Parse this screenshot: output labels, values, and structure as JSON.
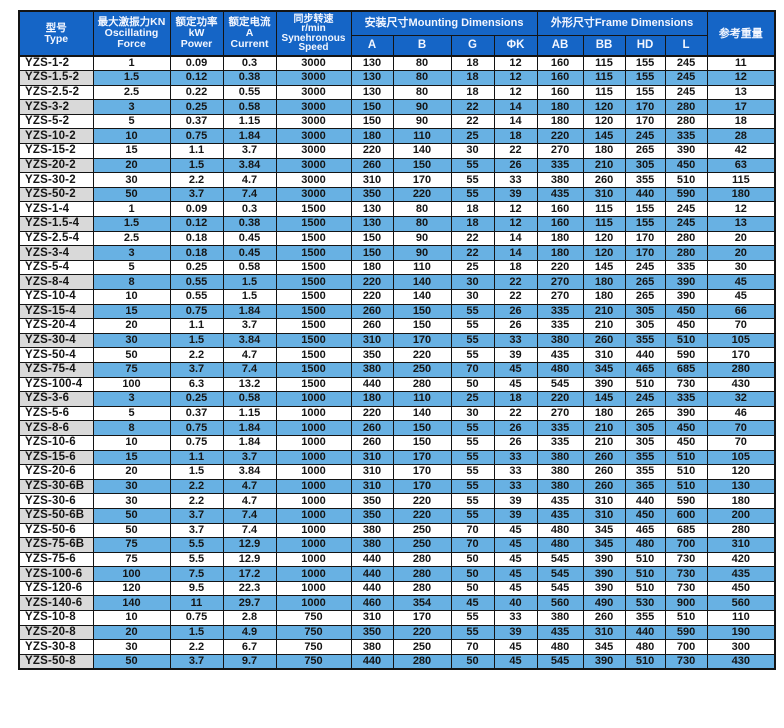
{
  "colors": {
    "header_blue": "#1565c6",
    "row_blue": "#68b1e3",
    "type_gray": "#d9d9d9",
    "border_dark": "#141414"
  },
  "table": {
    "header": {
      "type_lines": [
        "型号",
        "Type"
      ],
      "force_lines": [
        "最大激振力KN",
        "Oscillating",
        "Force"
      ],
      "power_lines": [
        "额定功率",
        "kW",
        "Power"
      ],
      "current_lines": [
        "额定电流",
        "A",
        "Current"
      ],
      "speed_lines": [
        "同步转速",
        "r/min",
        "Synehronous",
        "Speed"
      ],
      "mounting": "安装尺寸Mounting Dimensions",
      "frame": "外形尺寸Frame Dimensions",
      "weight": "参考重量",
      "mounting_cols": [
        "A",
        "B",
        "G",
        "ΦK"
      ],
      "frame_cols": [
        "AB",
        "BB",
        "HD",
        "L"
      ]
    },
    "rows": [
      {
        "type": "YZS-1-2",
        "values": [
          "1",
          "0.09",
          "0.3",
          "3000",
          "130",
          "80",
          "18",
          "12",
          "160",
          "115",
          "155",
          "245",
          "11"
        ]
      },
      {
        "type": "YZS-1.5-2",
        "values": [
          "1.5",
          "0.12",
          "0.38",
          "3000",
          "130",
          "80",
          "18",
          "12",
          "160",
          "115",
          "155",
          "245",
          "12"
        ]
      },
      {
        "type": "YZS-2.5-2",
        "values": [
          "2.5",
          "0.22",
          "0.55",
          "3000",
          "130",
          "80",
          "18",
          "12",
          "160",
          "115",
          "155",
          "245",
          "13"
        ]
      },
      {
        "type": "YZS-3-2",
        "values": [
          "3",
          "0.25",
          "0.58",
          "3000",
          "150",
          "90",
          "22",
          "14",
          "180",
          "120",
          "170",
          "280",
          "17"
        ]
      },
      {
        "type": "YZS-5-2",
        "values": [
          "5",
          "0.37",
          "1.15",
          "3000",
          "150",
          "90",
          "22",
          "14",
          "180",
          "120",
          "170",
          "280",
          "18"
        ]
      },
      {
        "type": "YZS-10-2",
        "values": [
          "10",
          "0.75",
          "1.84",
          "3000",
          "180",
          "110",
          "25",
          "18",
          "220",
          "145",
          "245",
          "335",
          "28"
        ]
      },
      {
        "type": "YZS-15-2",
        "values": [
          "15",
          "1.1",
          "3.7",
          "3000",
          "220",
          "140",
          "30",
          "22",
          "270",
          "180",
          "265",
          "390",
          "42"
        ]
      },
      {
        "type": "YZS-20-2",
        "values": [
          "20",
          "1.5",
          "3.84",
          "3000",
          "260",
          "150",
          "55",
          "26",
          "335",
          "210",
          "305",
          "450",
          "63"
        ]
      },
      {
        "type": "YZS-30-2",
        "values": [
          "30",
          "2.2",
          "4.7",
          "3000",
          "310",
          "170",
          "55",
          "33",
          "380",
          "260",
          "355",
          "510",
          "115"
        ]
      },
      {
        "type": "YZS-50-2",
        "values": [
          "50",
          "3.7",
          "7.4",
          "3000",
          "350",
          "220",
          "55",
          "39",
          "435",
          "310",
          "440",
          "590",
          "180"
        ]
      },
      {
        "type": "YZS-1-4",
        "values": [
          "1",
          "0.09",
          "0.3",
          "1500",
          "130",
          "80",
          "18",
          "12",
          "160",
          "115",
          "155",
          "245",
          "12"
        ]
      },
      {
        "type": "YZS-1.5-4",
        "values": [
          "1.5",
          "0.12",
          "0.38",
          "1500",
          "130",
          "80",
          "18",
          "12",
          "160",
          "115",
          "155",
          "245",
          "13"
        ]
      },
      {
        "type": "YZS-2.5-4",
        "values": [
          "2.5",
          "0.18",
          "0.45",
          "1500",
          "150",
          "90",
          "22",
          "14",
          "180",
          "120",
          "170",
          "280",
          "20"
        ]
      },
      {
        "type": "YZS-3-4",
        "values": [
          "3",
          "0.18",
          "0.45",
          "1500",
          "150",
          "90",
          "22",
          "14",
          "180",
          "120",
          "170",
          "280",
          "20"
        ]
      },
      {
        "type": "YZS-5-4",
        "values": [
          "5",
          "0.25",
          "0.58",
          "1500",
          "180",
          "110",
          "25",
          "18",
          "220",
          "145",
          "245",
          "335",
          "30"
        ]
      },
      {
        "type": "YZS-8-4",
        "values": [
          "8",
          "0.55",
          "1.5",
          "1500",
          "220",
          "140",
          "30",
          "22",
          "270",
          "180",
          "265",
          "390",
          "45"
        ]
      },
      {
        "type": "YZS-10-4",
        "values": [
          "10",
          "0.55",
          "1.5",
          "1500",
          "220",
          "140",
          "30",
          "22",
          "270",
          "180",
          "265",
          "390",
          "45"
        ]
      },
      {
        "type": "YZS-15-4",
        "values": [
          "15",
          "0.75",
          "1.84",
          "1500",
          "260",
          "150",
          "55",
          "26",
          "335",
          "210",
          "305",
          "450",
          "66"
        ]
      },
      {
        "type": "YZS-20-4",
        "values": [
          "20",
          "1.1",
          "3.7",
          "1500",
          "260",
          "150",
          "55",
          "26",
          "335",
          "210",
          "305",
          "450",
          "70"
        ]
      },
      {
        "type": "YZS-30-4",
        "values": [
          "30",
          "1.5",
          "3.84",
          "1500",
          "310",
          "170",
          "55",
          "33",
          "380",
          "260",
          "355",
          "510",
          "105"
        ]
      },
      {
        "type": "YZS-50-4",
        "values": [
          "50",
          "2.2",
          "4.7",
          "1500",
          "350",
          "220",
          "55",
          "39",
          "435",
          "310",
          "440",
          "590",
          "170"
        ]
      },
      {
        "type": "YZS-75-4",
        "values": [
          "75",
          "3.7",
          "7.4",
          "1500",
          "380",
          "250",
          "70",
          "45",
          "480",
          "345",
          "465",
          "685",
          "280"
        ]
      },
      {
        "type": "YZS-100-4",
        "values": [
          "100",
          "6.3",
          "13.2",
          "1500",
          "440",
          "280",
          "50",
          "45",
          "545",
          "390",
          "510",
          "730",
          "430"
        ]
      },
      {
        "type": "YZS-3-6",
        "values": [
          "3",
          "0.25",
          "0.58",
          "1000",
          "180",
          "110",
          "25",
          "18",
          "220",
          "145",
          "245",
          "335",
          "32"
        ]
      },
      {
        "type": "YZS-5-6",
        "values": [
          "5",
          "0.37",
          "1.15",
          "1000",
          "220",
          "140",
          "30",
          "22",
          "270",
          "180",
          "265",
          "390",
          "46"
        ]
      },
      {
        "type": "YZS-8-6",
        "values": [
          "8",
          "0.75",
          "1.84",
          "1000",
          "260",
          "150",
          "55",
          "26",
          "335",
          "210",
          "305",
          "450",
          "70"
        ]
      },
      {
        "type": "YZS-10-6",
        "values": [
          "10",
          "0.75",
          "1.84",
          "1000",
          "260",
          "150",
          "55",
          "26",
          "335",
          "210",
          "305",
          "450",
          "70"
        ]
      },
      {
        "type": "YZS-15-6",
        "values": [
          "15",
          "1.1",
          "3.7",
          "1000",
          "310",
          "170",
          "55",
          "33",
          "380",
          "260",
          "355",
          "510",
          "105"
        ]
      },
      {
        "type": "YZS-20-6",
        "values": [
          "20",
          "1.5",
          "3.84",
          "1000",
          "310",
          "170",
          "55",
          "33",
          "380",
          "260",
          "355",
          "510",
          "120"
        ]
      },
      {
        "type": "YZS-30-6B",
        "values": [
          "30",
          "2.2",
          "4.7",
          "1000",
          "310",
          "170",
          "55",
          "33",
          "380",
          "260",
          "365",
          "510",
          "130"
        ]
      },
      {
        "type": "YZS-30-6",
        "values": [
          "30",
          "2.2",
          "4.7",
          "1000",
          "350",
          "220",
          "55",
          "39",
          "435",
          "310",
          "440",
          "590",
          "180"
        ]
      },
      {
        "type": "YZS-50-6B",
        "values": [
          "50",
          "3.7",
          "7.4",
          "1000",
          "350",
          "220",
          "55",
          "39",
          "435",
          "310",
          "450",
          "600",
          "200"
        ]
      },
      {
        "type": "YZS-50-6",
        "values": [
          "50",
          "3.7",
          "7.4",
          "1000",
          "380",
          "250",
          "70",
          "45",
          "480",
          "345",
          "465",
          "685",
          "280"
        ]
      },
      {
        "type": "YZS-75-6B",
        "values": [
          "75",
          "5.5",
          "12.9",
          "1000",
          "380",
          "250",
          "70",
          "45",
          "480",
          "345",
          "480",
          "700",
          "310"
        ]
      },
      {
        "type": "YZS-75-6",
        "values": [
          "75",
          "5.5",
          "12.9",
          "1000",
          "440",
          "280",
          "50",
          "45",
          "545",
          "390",
          "510",
          "730",
          "420"
        ]
      },
      {
        "type": "YZS-100-6",
        "values": [
          "100",
          "7.5",
          "17.2",
          "1000",
          "440",
          "280",
          "50",
          "45",
          "545",
          "390",
          "510",
          "730",
          "435"
        ]
      },
      {
        "type": "YZS-120-6",
        "values": [
          "120",
          "9.5",
          "22.3",
          "1000",
          "440",
          "280",
          "50",
          "45",
          "545",
          "390",
          "510",
          "730",
          "450"
        ]
      },
      {
        "type": "YZS-140-6",
        "values": [
          "140",
          "11",
          "29.7",
          "1000",
          "460",
          "354",
          "45",
          "40",
          "560",
          "490",
          "530",
          "900",
          "560"
        ]
      },
      {
        "type": "YZS-10-8",
        "values": [
          "10",
          "0.75",
          "2.8",
          "750",
          "310",
          "170",
          "55",
          "33",
          "380",
          "260",
          "355",
          "510",
          "110"
        ]
      },
      {
        "type": "YZS-20-8",
        "values": [
          "20",
          "1.5",
          "4.9",
          "750",
          "350",
          "220",
          "55",
          "39",
          "435",
          "310",
          "440",
          "590",
          "190"
        ]
      },
      {
        "type": "YZS-30-8",
        "values": [
          "30",
          "2.2",
          "6.7",
          "750",
          "380",
          "250",
          "70",
          "45",
          "480",
          "345",
          "480",
          "700",
          "300"
        ]
      },
      {
        "type": "YZS-50-8",
        "values": [
          "50",
          "3.7",
          "9.7",
          "750",
          "440",
          "280",
          "50",
          "45",
          "545",
          "390",
          "510",
          "730",
          "430"
        ]
      }
    ]
  }
}
